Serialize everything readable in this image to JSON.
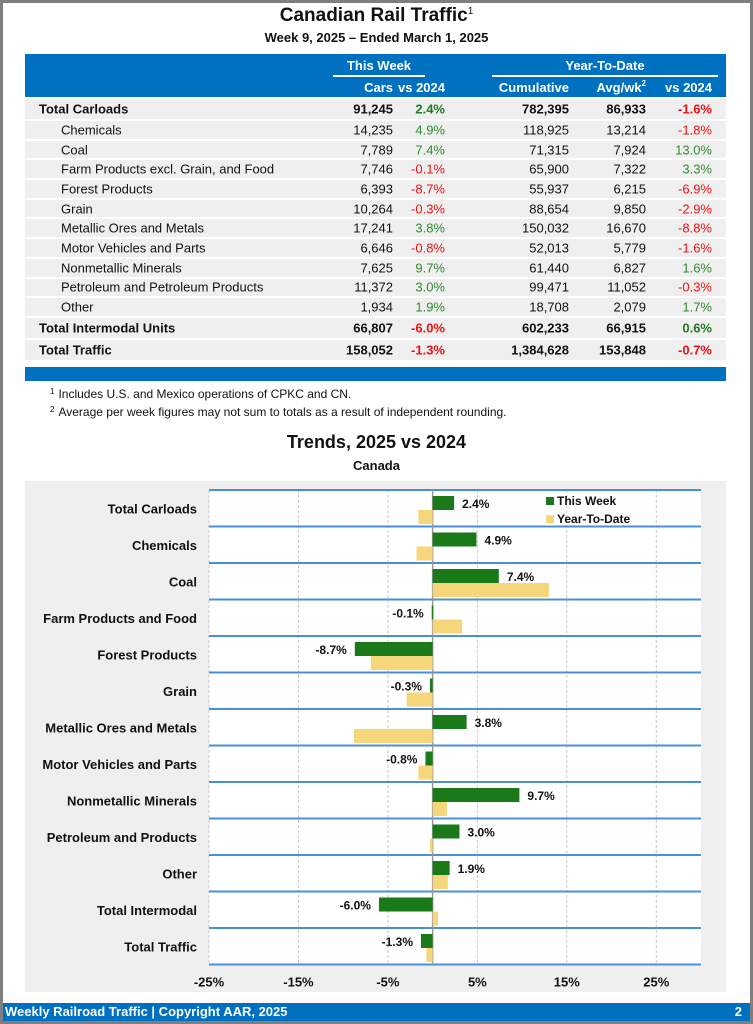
{
  "title": "Canadian Rail Traffic",
  "title_footnote": "1",
  "subtitle": "Week 9, 2025 – Ended March 1, 2025",
  "table": {
    "groups": {
      "this_week": "This Week",
      "ytd": "Year-To-Date"
    },
    "columns": {
      "cars": "Cars",
      "tw_vs": "vs 2024",
      "cumulative": "Cumulative",
      "avg": "Avg/wk",
      "avg_footnote": "2",
      "ytd_vs": "vs 2024"
    },
    "rows": [
      {
        "label": "Total Carloads",
        "type": "total",
        "cars": "91,245",
        "tw_vs": "2.4%",
        "cumulative": "782,395",
        "avg": "86,933",
        "ytd_vs": "-1.6%"
      },
      {
        "label": "Chemicals",
        "type": "sub",
        "cars": "14,235",
        "tw_vs": "4.9%",
        "cumulative": "118,925",
        "avg": "13,214",
        "ytd_vs": "-1.8%"
      },
      {
        "label": "Coal",
        "type": "sub",
        "cars": "7,789",
        "tw_vs": "7.4%",
        "cumulative": "71,315",
        "avg": "7,924",
        "ytd_vs": "13.0%"
      },
      {
        "label": "Farm Products excl. Grain, and Food",
        "type": "sub",
        "cars": "7,746",
        "tw_vs": "-0.1%",
        "cumulative": "65,900",
        "avg": "7,322",
        "ytd_vs": "3.3%"
      },
      {
        "label": "Forest Products",
        "type": "sub",
        "cars": "6,393",
        "tw_vs": "-8.7%",
        "cumulative": "55,937",
        "avg": "6,215",
        "ytd_vs": "-6.9%"
      },
      {
        "label": "Grain",
        "type": "sub",
        "cars": "10,264",
        "tw_vs": "-0.3%",
        "cumulative": "88,654",
        "avg": "9,850",
        "ytd_vs": "-2.9%"
      },
      {
        "label": "Metallic Ores and Metals",
        "type": "sub",
        "cars": "17,241",
        "tw_vs": "3.8%",
        "cumulative": "150,032",
        "avg": "16,670",
        "ytd_vs": "-8.8%"
      },
      {
        "label": "Motor Vehicles and Parts",
        "type": "sub",
        "cars": "6,646",
        "tw_vs": "-0.8%",
        "cumulative": "52,013",
        "avg": "5,779",
        "ytd_vs": "-1.6%"
      },
      {
        "label": "Nonmetallic Minerals",
        "type": "sub",
        "cars": "7,625",
        "tw_vs": "9.7%",
        "cumulative": "61,440",
        "avg": "6,827",
        "ytd_vs": "1.6%"
      },
      {
        "label": "Petroleum and Petroleum Products",
        "type": "sub",
        "cars": "11,372",
        "tw_vs": "3.0%",
        "cumulative": "99,471",
        "avg": "11,052",
        "ytd_vs": "-0.3%"
      },
      {
        "label": "Other",
        "type": "sub",
        "cars": "1,934",
        "tw_vs": "1.9%",
        "cumulative": "18,708",
        "avg": "2,079",
        "ytd_vs": "1.7%"
      },
      {
        "label": "Total Intermodal Units",
        "type": "total",
        "cars": "66,807",
        "tw_vs": "-6.0%",
        "cumulative": "602,233",
        "avg": "66,915",
        "ytd_vs": "0.6%"
      },
      {
        "label": "Total Traffic",
        "type": "total",
        "cars": "158,052",
        "tw_vs": "-1.3%",
        "cumulative": "1,384,628",
        "avg": "153,848",
        "ytd_vs": "-0.7%"
      }
    ]
  },
  "notes": [
    {
      "mark": "1",
      "text": "Includes U.S. and Mexico operations of CPKC and CN."
    },
    {
      "mark": "2",
      "text": "Average per week figures may not sum to totals as a result of independent rounding."
    }
  ],
  "colors": {
    "brand_blue": "#0070c0",
    "positive": "#2e8b2e",
    "negative": "#ee1111",
    "this_week_bar": "#1a7a1a",
    "ytd_bar": "#f5d67a"
  },
  "chart_data": {
    "type": "bar",
    "orientation": "horizontal",
    "title": "Trends, 2025 vs 2024",
    "subtitle": "Canada",
    "categories": [
      "Total Carloads",
      "Chemicals",
      "Coal",
      "Farm Products and Food",
      "Forest Products",
      "Grain",
      "Metallic Ores and Metals",
      "Motor Vehicles and Parts",
      "Nonmetallic Minerals",
      "Petroleum and Products",
      "Other",
      "Total Intermodal",
      "Total Traffic"
    ],
    "series": [
      {
        "name": "This Week",
        "values": [
          2.4,
          4.9,
          7.4,
          -0.1,
          -8.7,
          -0.3,
          3.8,
          -0.8,
          9.7,
          3.0,
          1.9,
          -6.0,
          -1.3
        ],
        "labels": [
          "2.4%",
          "4.9%",
          "7.4%",
          "-0.1%",
          "-8.7%",
          "-0.3%",
          "3.8%",
          "-0.8%",
          "9.7%",
          "3.0%",
          "1.9%",
          "-6.0%",
          "-1.3%"
        ]
      },
      {
        "name": "Year-To-Date",
        "values": [
          -1.6,
          -1.8,
          13.0,
          3.3,
          -6.9,
          -2.9,
          -8.8,
          -1.6,
          1.6,
          -0.3,
          1.7,
          0.6,
          -0.7
        ]
      }
    ],
    "xlabel": "",
    "ylabel": "",
    "xlim": [
      -25,
      30
    ],
    "xticks": [
      -25,
      -15,
      -5,
      5,
      15,
      25
    ],
    "xtick_labels": [
      "-25%",
      "-15%",
      "-5%",
      "5%",
      "15%",
      "25%"
    ],
    "grid": true,
    "legend_position": "top-right"
  },
  "footer": {
    "left": "Weekly Railroad Traffic | Copyright AAR, 2025",
    "page": "2"
  }
}
